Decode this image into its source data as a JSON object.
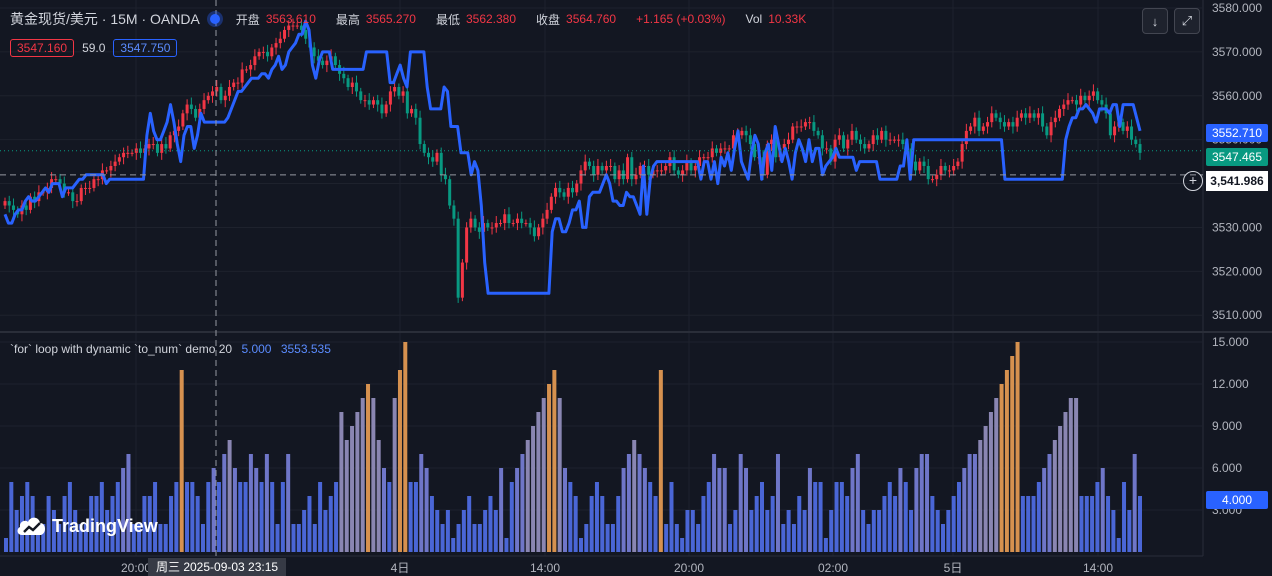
{
  "header": {
    "symbol": "黄金现货/美元 · 15M · OANDA",
    "open_label": "开盘",
    "open_value": "3563.610",
    "high_label": "最高",
    "high_value": "3565.270",
    "low_label": "最低",
    "low_value": "3562.380",
    "close_label": "收盘",
    "close_value": "3564.760",
    "change": "+1.165 (+0.03%)",
    "vol_label": "Vol",
    "vol_value": "10.33K"
  },
  "indicator_row": {
    "red_box": "3547.160",
    "middle": "59.0",
    "blue_box": "3547.750"
  },
  "sub_legend": {
    "title": "`for` loop with dynamic `to_num` demo 20",
    "value1": "5.000",
    "value2": "3553.535"
  },
  "toolbar": {
    "down_icon": "↓",
    "expand_icon": "⤢"
  },
  "logo": {
    "text": "TradingView"
  },
  "crosshair": {
    "price_label": "3,541.986",
    "time_label": "周三 2025-09-03 23:15"
  },
  "colors": {
    "up": "#f23645",
    "down": "#089981",
    "line": "#2962ff",
    "accent_blue": "#2962ff",
    "bar_blue": "#4a66d6",
    "bar_purple": "#8a86b2",
    "bar_orange": "#d6914f"
  },
  "chart_data": [
    {
      "type": "candlestick",
      "title": "黄金现货/美元 · 15M · OANDA",
      "ylim": [
        3508,
        3580
      ],
      "y_ticks": [
        "3510.000",
        "3520.000",
        "3530.000",
        "3540.000",
        "3550.000",
        "3560.000",
        "3570.000",
        "3580.000"
      ],
      "x_labels": [
        "20:00",
        "4日",
        "14:00",
        "20:00",
        "02:00",
        "5日",
        "14:00"
      ],
      "price_labels": {
        "line_last": "3552.710",
        "close_last": "3547.465"
      },
      "close": [
        3536,
        3535,
        3534,
        3533,
        3535,
        3534,
        3537,
        3536,
        3538,
        3538,
        3539,
        3541,
        3541,
        3540,
        3538,
        3538,
        3536,
        3536,
        3539,
        3539,
        3539,
        3541,
        3541,
        3543,
        3543,
        3544,
        3545,
        3546,
        3547,
        3547,
        3547,
        3548,
        3547,
        3548,
        3549,
        3549,
        3547,
        3549,
        3548,
        3551,
        3552,
        3553,
        3556,
        3558,
        3557,
        3555,
        3557,
        3559,
        3560,
        3561,
        3562,
        3559,
        3560,
        3562,
        3563,
        3563,
        3566,
        3566,
        3567,
        3569,
        3570,
        3570,
        3569,
        3571,
        3572,
        3573,
        3575,
        3576,
        3576,
        3576,
        3575,
        3573,
        3571,
        3569,
        3568,
        3567,
        3568,
        3569,
        3567,
        3565,
        3564,
        3562,
        3563,
        3561,
        3559,
        3559,
        3558,
        3559,
        3558,
        3556,
        3558,
        3561,
        3562,
        3560,
        3561,
        3556,
        3557,
        3555,
        3549,
        3547,
        3546,
        3545,
        3547,
        3542,
        3541,
        3535,
        3532,
        3514,
        3522,
        3530,
        3532,
        3530,
        3529,
        3531,
        3530,
        3530,
        3531,
        3531,
        3533,
        3531,
        3531,
        3532,
        3531,
        3531,
        3530,
        3528,
        3530,
        3532,
        3534,
        3537,
        3539,
        3538,
        3537,
        3539,
        3538,
        3540,
        3543,
        3545,
        3544,
        3542,
        3544,
        3543,
        3544,
        3544,
        3541,
        3543,
        3541,
        3546,
        3541,
        3542,
        3544,
        3544,
        3542,
        3543,
        3543,
        3543,
        3544,
        3546,
        3543,
        3542,
        3543,
        3545,
        3543,
        3544,
        3546,
        3546,
        3546,
        3548,
        3547,
        3548,
        3548,
        3548,
        3551,
        3551,
        3552,
        3551,
        3549,
        3546,
        3546,
        3542,
        3549,
        3550,
        3546,
        3548,
        3549,
        3550,
        3553,
        3553,
        3553,
        3554,
        3554,
        3552,
        3551,
        3548,
        3548,
        3545,
        3550,
        3551,
        3548,
        3550,
        3552,
        3550,
        3549,
        3548,
        3549,
        3551,
        3550,
        3552,
        3550,
        3550,
        3550,
        3550,
        3549,
        3548,
        3545,
        3543,
        3545,
        3544,
        3541,
        3541,
        3542,
        3544,
        3543,
        3543,
        3544,
        3545,
        3549,
        3552,
        3553,
        3555,
        3552,
        3553,
        3554,
        3556,
        3555,
        3554,
        3553,
        3554,
        3553,
        3555,
        3556,
        3555,
        3556,
        3555,
        3556,
        3553,
        3551,
        3554,
        3555,
        3557,
        3558,
        3559,
        3559,
        3558,
        3560,
        3559,
        3560,
        3561,
        3559,
        3558,
        3556,
        3551,
        3553,
        3554,
        3552,
        3553,
        3550,
        3549,
        3547
      ],
      "blue_line": [
        3533,
        3531,
        3531,
        3533,
        3534,
        3534,
        3536,
        3537,
        3536,
        3536,
        3537,
        3538,
        3539,
        3538,
        3540,
        3540,
        3540,
        3537,
        3539,
        3539,
        3539,
        3540,
        3541,
        3541,
        3542,
        3542,
        3542,
        3542,
        3542,
        3542,
        3540,
        3541,
        3541,
        3541,
        3541,
        3541,
        3541,
        3541,
        3541,
        3541,
        3541,
        3541,
        3551,
        3556,
        3552,
        3550,
        3550,
        3552,
        3554,
        3558,
        3554,
        3549,
        3545,
        3551,
        3553,
        3553,
        3548,
        3551,
        3556,
        3554,
        3554,
        3554,
        3554,
        3554,
        3554,
        3554,
        3555,
        3557,
        3559,
        3561,
        3561,
        3562,
        3563,
        3564,
        3564,
        3564,
        3565,
        3565,
        3564,
        3566,
        3567,
        3569,
        3566,
        3567,
        3570,
        3571,
        3572,
        3574,
        3574,
        3577,
        3575,
        3567,
        3564,
        3568,
        3570,
        3570,
        3570,
        3566,
        3566,
        3566,
        3566,
        3566,
        3566,
        3566,
        3566,
        3566,
        3566,
        3570,
        3570,
        3570,
        3570,
        3570,
        3570,
        3570,
        3563,
        3563,
        3565,
        3567,
        3564,
        3562,
        3570,
        3570,
        3570,
        3570,
        3570,
        3562,
        3557,
        3557,
        3557,
        3557,
        3562,
        3561,
        3553,
        3553,
        3553,
        3547,
        3547,
        3547,
        3542,
        3545,
        3543,
        3535,
        3522,
        3515,
        3515,
        3515,
        3515,
        3515,
        3515,
        3515,
        3515,
        3515,
        3515,
        3515,
        3515,
        3515,
        3515,
        3515,
        3515,
        3515,
        3515,
        3515,
        3529,
        3532,
        3532,
        3529,
        3529,
        3531,
        3534,
        3534,
        3536,
        3530,
        3530,
        3537,
        3538,
        3538,
        3538,
        3540,
        3542,
        3540,
        3536,
        3536,
        3535,
        3535,
        3538,
        3537,
        3537,
        3535,
        3533,
        3544,
        3533,
        3541,
        3544,
        3545,
        3545,
        3545,
        3545,
        3545,
        3545,
        3545,
        3545,
        3545,
        3545,
        3545,
        3545,
        3545,
        3541,
        3545,
        3545,
        3541,
        3545,
        3540,
        3546,
        3544,
        3547,
        3543,
        3548,
        3552,
        3545,
        3543,
        3541,
        3547,
        3551,
        3549,
        3541,
        3547,
        3549,
        3543,
        3553,
        3549,
        3545,
        3548,
        3545,
        3541,
        3547,
        3550,
        3548,
        3545,
        3550,
        3545,
        3548,
        3548,
        3542,
        3544,
        3545,
        3546,
        3548,
        3546,
        3546,
        3546,
        3546,
        3546,
        3543,
        3545,
        3545,
        3545,
        3545,
        3545,
        3545,
        3541,
        3541,
        3541,
        3541,
        3541,
        3541,
        3544,
        3544,
        3550,
        3541,
        3550,
        3550,
        3550,
        3550,
        3550,
        3550,
        3550,
        3550,
        3550,
        3550,
        3550,
        3550,
        3550,
        3550,
        3550,
        3550,
        3550,
        3550,
        3550,
        3550,
        3550,
        3550,
        3550,
        3550,
        3550,
        3550,
        3550,
        3541,
        3541,
        3541,
        3541,
        3541,
        3541,
        3541,
        3541,
        3541,
        3541,
        3541,
        3541,
        3541,
        3541,
        3541,
        3541,
        3541,
        3541,
        3550,
        3553,
        3555,
        3555,
        3557,
        3557,
        3558,
        3557,
        3556,
        3554,
        3557,
        3557,
        3557,
        3556,
        3558,
        3558,
        3553,
        3558,
        3558,
        3558,
        3558,
        3555,
        3552
      ]
    },
    {
      "type": "bar",
      "title": "`for` loop with dynamic `to_num` demo 20",
      "ylim": [
        0,
        15
      ],
      "y_ticks": [
        "3.000",
        "6.000",
        "9.000",
        "12.000",
        "15.000"
      ],
      "last_value_label": "4.000",
      "values": [
        1,
        5,
        3,
        4,
        5,
        4,
        2,
        2,
        4,
        3,
        2,
        4,
        5,
        3,
        2,
        2,
        4,
        4,
        5,
        3,
        4,
        5,
        6,
        7,
        2,
        2,
        4,
        4,
        5,
        2,
        2,
        4,
        5,
        13,
        5,
        5,
        4,
        2,
        5,
        6,
        5,
        7,
        8,
        6,
        5,
        5,
        7,
        6,
        5,
        7,
        5,
        2,
        5,
        7,
        2,
        2,
        3,
        4,
        2,
        5,
        3,
        4,
        5,
        10,
        8,
        9,
        10,
        11,
        12,
        11,
        8,
        6,
        5,
        11,
        13,
        15,
        5,
        5,
        7,
        6,
        4,
        3,
        2,
        3,
        1,
        2,
        3,
        4,
        2,
        2,
        3,
        4,
        3,
        6,
        1,
        5,
        6,
        7,
        8,
        9,
        10,
        11,
        12,
        13,
        11,
        6,
        5,
        4,
        1,
        2,
        4,
        5,
        4,
        2,
        2,
        4,
        6,
        7,
        8,
        7,
        6,
        5,
        4,
        13,
        2,
        5,
        2,
        1,
        3,
        3,
        2,
        4,
        5,
        7,
        6,
        6,
        2,
        3,
        7,
        6,
        3,
        4,
        5,
        3,
        4,
        7,
        2,
        3,
        2,
        4,
        3,
        6,
        5,
        5,
        1,
        3,
        5,
        5,
        4,
        6,
        7,
        3,
        2,
        3,
        3,
        4,
        5,
        4,
        6,
        5,
        3,
        6,
        7,
        7,
        4,
        3,
        2,
        3,
        4,
        5,
        6,
        7,
        7,
        8,
        9,
        10,
        11,
        12,
        13,
        14,
        15,
        4,
        4,
        4,
        5,
        6,
        7,
        8,
        9,
        10,
        11,
        11,
        4,
        4,
        4,
        5,
        6,
        4,
        3,
        1,
        5,
        3,
        7,
        4
      ]
    }
  ]
}
